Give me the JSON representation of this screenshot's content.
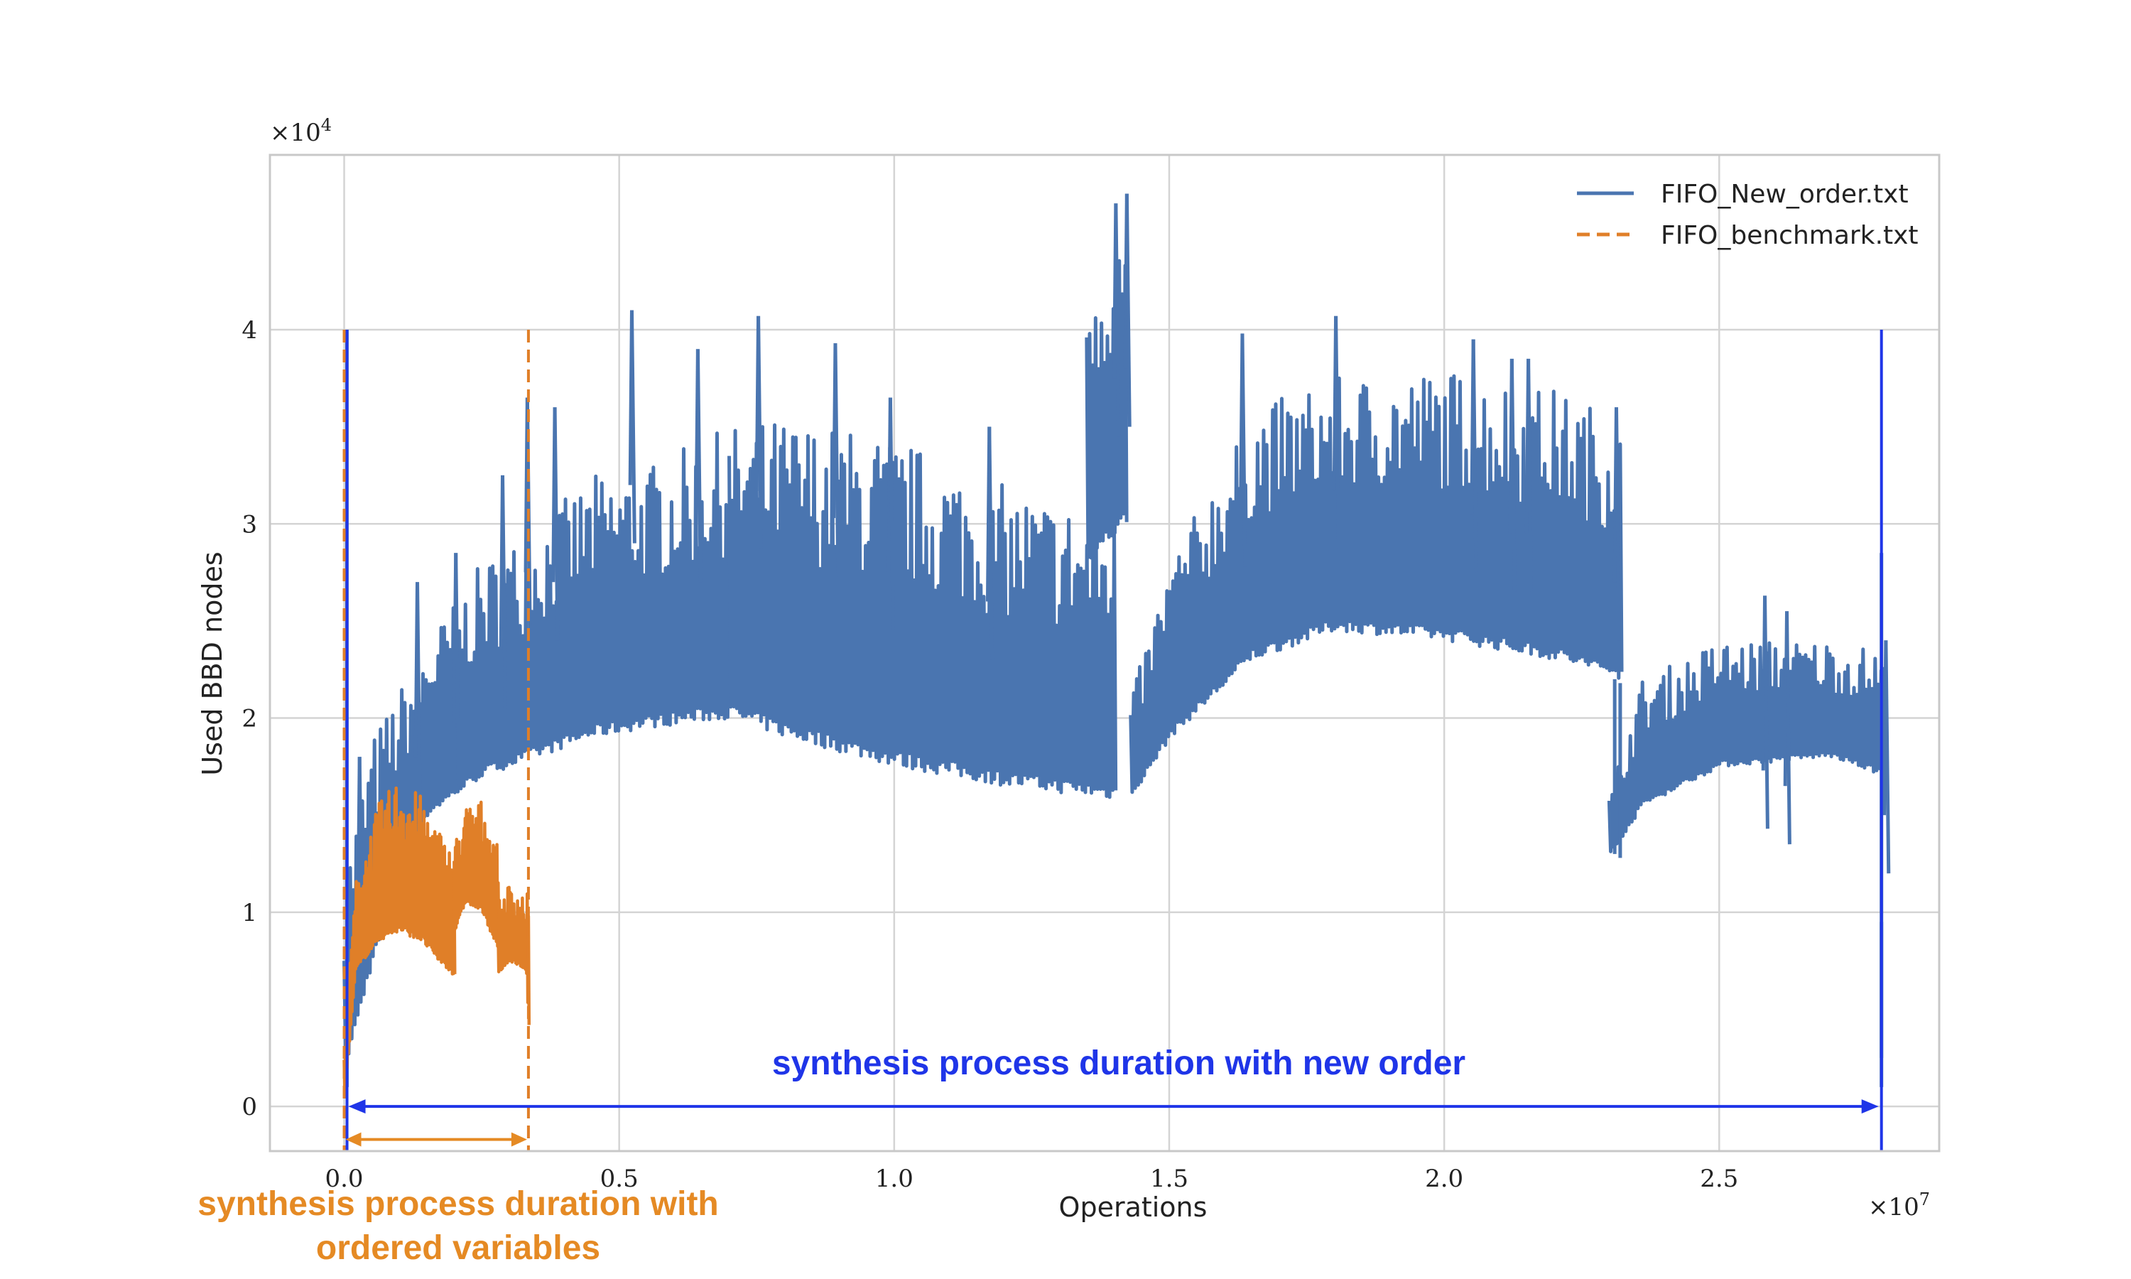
{
  "chart_data": {
    "type": "line",
    "xlabel": "Operations",
    "ylabel": "Used BBD nodes",
    "x_exponent": "×10",
    "x_exponent_power": "7",
    "y_exponent": "×10",
    "y_exponent_power": "4",
    "xlim": [
      -0.135,
      2.9
    ],
    "ylim": [
      -0.23,
      4.9
    ],
    "x_ticks": [
      0.0,
      0.5,
      1.0,
      1.5,
      2.0,
      2.5
    ],
    "x_tick_labels": [
      "0.0",
      "0.5",
      "1.0",
      "1.5",
      "2.0",
      "2.5"
    ],
    "y_ticks": [
      0,
      1,
      2,
      3,
      4
    ],
    "y_tick_labels": [
      "0",
      "1",
      "2",
      "3",
      "4"
    ],
    "grid": true,
    "legend_position": "top-right",
    "series": [
      {
        "name": "FIFO_New_order.txt",
        "color": "#4a75b0",
        "style": "solid",
        "segments": [
          {
            "x": [
              0.0,
              0.05,
              0.15,
              0.25,
              0.35,
              0.45,
              0.55,
              0.7
            ],
            "low": [
              0.2,
              0.75,
              1.5,
              1.7,
              1.8,
              1.9,
              1.95,
              2.0
            ],
            "high": [
              1.2,
              1.9,
              2.4,
              2.8,
              3.0,
              3.25,
              3.3,
              3.5
            ]
          },
          {
            "x": [
              0.7,
              0.8,
              1.0,
              1.2,
              1.4
            ],
            "low": [
              2.0,
              1.9,
              1.75,
              1.65,
              1.58
            ],
            "high": [
              3.5,
              3.55,
              3.45,
              3.2,
              3.05
            ]
          },
          {
            "x": [
              1.35,
              1.42
            ],
            "low": [
              2.8,
              3.0
            ],
            "high": [
              4.4,
              4.55
            ]
          },
          {
            "x": [
              1.43,
              1.5,
              1.65,
              1.8,
              2.0,
              2.2,
              2.32
            ],
            "low": [
              1.6,
              1.9,
              2.3,
              2.45,
              2.4,
              2.3,
              2.2
            ],
            "high": [
              2.1,
              2.8,
              3.6,
              3.75,
              3.8,
              3.7,
              3.55
            ]
          },
          {
            "x": [
              2.3,
              2.36,
              2.5,
              2.7,
              2.8
            ],
            "low": [
              1.3,
              1.55,
              1.75,
              1.8,
              1.7
            ],
            "high": [
              1.6,
              2.2,
              2.4,
              2.4,
              2.35
            ]
          }
        ],
        "peaks": [
          [
            0.025,
            1.8
          ],
          [
            0.13,
            2.7
          ],
          [
            0.2,
            2.85
          ],
          [
            0.285,
            3.25
          ],
          [
            0.33,
            3.65
          ],
          [
            0.38,
            3.6
          ],
          [
            0.52,
            4.1
          ],
          [
            0.64,
            3.9
          ],
          [
            0.75,
            4.07
          ],
          [
            0.89,
            3.93
          ],
          [
            0.99,
            3.65
          ],
          [
            1.17,
            3.5
          ],
          [
            1.4,
            4.65
          ],
          [
            1.42,
            4.7
          ],
          [
            1.63,
            3.98
          ],
          [
            1.8,
            4.07
          ],
          [
            2.05,
            3.95
          ],
          [
            2.12,
            3.85
          ],
          [
            2.15,
            3.85
          ],
          [
            2.31,
            3.6
          ],
          [
            2.58,
            2.63
          ],
          [
            2.62,
            2.55
          ],
          [
            2.8,
            2.4
          ]
        ],
        "dips": [
          [
            2.31,
            1.3
          ],
          [
            2.32,
            1.28
          ]
        ],
        "spikes": [
          [
            0.005,
            4.0
          ],
          [
            2.795,
            2.85
          ]
        ],
        "end_drop": [
          2.795,
          0.95,
          0.25
        ]
      },
      {
        "name": "FIFO_benchmark.txt",
        "color": "#e07f28",
        "style": "dashed",
        "segments": [
          {
            "x": [
              0.0,
              0.02,
              0.06,
              0.1,
              0.14,
              0.17,
              0.2
            ],
            "low": [
              0.05,
              0.7,
              0.85,
              0.9,
              0.85,
              0.75,
              0.67
            ],
            "high": [
              0.25,
              1.15,
              1.55,
              1.7,
              1.6,
              1.45,
              1.3
            ]
          },
          {
            "x": [
              0.2,
              0.22,
              0.25,
              0.28
            ],
            "low": [
              0.9,
              1.05,
              1.0,
              0.8
            ],
            "high": [
              1.35,
              1.55,
              1.58,
              1.35
            ]
          },
          {
            "x": [
              0.28,
              0.3,
              0.33,
              0.335
            ],
            "low": [
              0.68,
              0.75,
              0.7,
              0.4
            ],
            "high": [
              1.05,
              1.15,
              1.1,
              1.1
            ]
          }
        ],
        "vlines": [
          0.0,
          0.335
        ],
        "vline_top": 4.0
      }
    ],
    "annotations": [
      {
        "text": "synthesis process duration with new order",
        "color": "#1f35e8",
        "x_start": 0.0,
        "x_end": 2.795,
        "y": 0.0
      },
      {
        "text": "synthesis process duration with",
        "text2": "ordered variables",
        "color": "#e58a24",
        "x_start": 0.0,
        "x_end": 0.335,
        "y": -0.17
      }
    ]
  }
}
